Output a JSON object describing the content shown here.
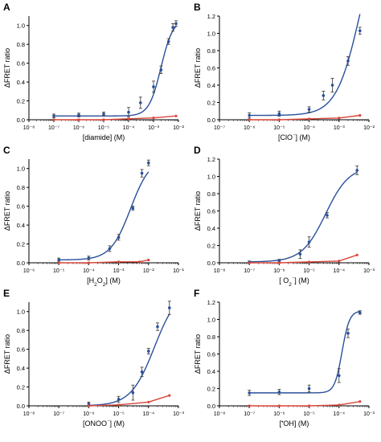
{
  "colors": {
    "blue": "#2a4f9a",
    "red": "#d9463b",
    "axis": "#000000",
    "errorbar": "#333333"
  },
  "panels": [
    {
      "letter": "A",
      "ylabel": "ΔFRET ratio",
      "xlabel": {
        "parts": [
          {
            "t": "[diamide] (M)"
          }
        ]
      },
      "x_ticks": [
        -8,
        -7,
        -6,
        -5,
        -4,
        -3,
        -2
      ],
      "x_tick_labels": [
        "10⁻⁸",
        "10⁻⁷",
        "10⁻⁶",
        "10⁻⁵",
        "10⁻⁴",
        "10⁻³",
        "10⁻²"
      ],
      "y_ticks": [
        0.0,
        0.2,
        0.4,
        0.6,
        0.8,
        1.0
      ],
      "y_tick_labels": [
        "0.0",
        "0.2",
        "0.4",
        "0.6",
        "0.8",
        "1.0"
      ],
      "ylim": [
        0,
        1.1
      ],
      "xlim": [
        -8,
        -2
      ],
      "blue_curve": {
        "bottom": 0.04,
        "top": 1.07,
        "log_ec50": -2.7,
        "hill": 1.8
      },
      "blue_points": [
        {
          "x": "1e-7",
          "y": 0.04,
          "err": 0.02
        },
        {
          "x": "1e-6",
          "y": 0.05,
          "err": 0.02
        },
        {
          "x": "1e-5",
          "y": 0.06,
          "err": 0.02
        },
        {
          "x": "1e-4",
          "y": 0.08,
          "err": 0.05
        },
        {
          "x": "3e-4",
          "y": 0.18,
          "err": 0.06
        },
        {
          "x": "1e-3",
          "y": 0.35,
          "err": 0.06
        },
        {
          "x": "2e-3",
          "y": 0.53,
          "err": 0.04
        },
        {
          "x": "4e-3",
          "y": 0.83,
          "err": 0.03
        },
        {
          "x": "6e-3",
          "y": 0.98,
          "err": 0.04
        },
        {
          "x": "8e-3",
          "y": 1.02,
          "err": 0.03
        }
      ],
      "red_points": [
        {
          "x": "1e-7",
          "y": 0.0
        },
        {
          "x": "1e-6",
          "y": 0.0
        },
        {
          "x": "1e-5",
          "y": 0.0
        },
        {
          "x": "1e-4",
          "y": 0.01
        },
        {
          "x": "1e-3",
          "y": 0.02
        },
        {
          "x": "8e-3",
          "y": 0.04
        }
      ]
    },
    {
      "letter": "B",
      "ylabel": "ΔFRET ratio",
      "xlabel": {
        "parts": [
          {
            "t": "[ClO"
          },
          {
            "t": "⁻",
            "sup": true
          },
          {
            "t": "] (M)"
          }
        ]
      },
      "x_ticks": [
        -7,
        -6,
        -5,
        -4,
        -3,
        -2
      ],
      "x_tick_labels": [
        "10⁻⁷",
        "10⁻⁶",
        "10⁻⁵",
        "10⁻⁴",
        "10⁻³",
        "10⁻²"
      ],
      "y_ticks": [
        0.0,
        0.2,
        0.4,
        0.6,
        0.8,
        1.0,
        1.2
      ],
      "y_tick_labels": [
        "0.0",
        "0.2",
        "0.4",
        "0.6",
        "0.8",
        "1.0",
        "1.2"
      ],
      "ylim": [
        0,
        1.2
      ],
      "xlim": [
        -7,
        -2
      ],
      "blue_curve": {
        "bottom": 0.05,
        "top": 2.4,
        "log_ec50": -2.3,
        "hill": 1.1
      },
      "blue_points": [
        {
          "x": "1e-6",
          "y": 0.05,
          "err": 0.03
        },
        {
          "x": "1e-5",
          "y": 0.07,
          "err": 0.03
        },
        {
          "x": "1e-4",
          "y": 0.12,
          "err": 0.03
        },
        {
          "x": "3e-4",
          "y": 0.28,
          "err": 0.05
        },
        {
          "x": "6e-4",
          "y": 0.4,
          "err": 0.08
        },
        {
          "x": "2e-3",
          "y": 0.68,
          "err": 0.05
        },
        {
          "x": "5e-3",
          "y": 1.03,
          "err": 0.04
        }
      ],
      "red_points": [
        {
          "x": "1e-6",
          "y": 0.0
        },
        {
          "x": "1e-5",
          "y": 0.0
        },
        {
          "x": "1e-4",
          "y": 0.01
        },
        {
          "x": "1e-3",
          "y": 0.02
        },
        {
          "x": "5e-3",
          "y": 0.05
        }
      ]
    },
    {
      "letter": "C",
      "ylabel": "ΔFRET ratio",
      "xlabel": {
        "parts": [
          {
            "t": "[H"
          },
          {
            "t": "2",
            "sub": true
          },
          {
            "t": "O"
          },
          {
            "t": "2",
            "sub": true
          },
          {
            "t": "] (M)"
          }
        ]
      },
      "x_ticks": [
        -6,
        -5,
        -4,
        -3,
        -2,
        -1
      ],
      "x_tick_labels": [
        "10⁻⁶",
        "10⁻⁵",
        "10⁻⁴",
        "10⁻³",
        "10⁻²",
        "10⁻¹"
      ],
      "y_ticks": [
        0.0,
        0.2,
        0.4,
        0.6,
        0.8,
        1.0
      ],
      "y_tick_labels": [
        "0.0",
        "0.2",
        "0.4",
        "0.6",
        "0.8",
        "1.0"
      ],
      "ylim": [
        0,
        1.1
      ],
      "xlim": [
        -6,
        -1
      ],
      "blue_curve": {
        "bottom": 0.03,
        "top": 1.12,
        "log_ec50": -2.6,
        "hill": 1.3
      },
      "blue_points": [
        {
          "x": "1e-5",
          "y": 0.03,
          "err": 0.02
        },
        {
          "x": "1e-4",
          "y": 0.05,
          "err": 0.02
        },
        {
          "x": "5e-4",
          "y": 0.15,
          "err": 0.03
        },
        {
          "x": "1e-3",
          "y": 0.27,
          "err": 0.03
        },
        {
          "x": "3e-3",
          "y": 0.58,
          "err": 0.02
        },
        {
          "x": "6e-3",
          "y": 0.95,
          "err": 0.04
        },
        {
          "x": "1e-2",
          "y": 1.06,
          "err": 0.03
        }
      ],
      "red_points": [
        {
          "x": "1e-5",
          "y": 0.0
        },
        {
          "x": "1e-4",
          "y": 0.0
        },
        {
          "x": "1e-3",
          "y": 0.01
        },
        {
          "x": "5e-3",
          "y": 0.01
        },
        {
          "x": "1e-2",
          "y": 0.03
        }
      ]
    },
    {
      "letter": "D",
      "ylabel": "ΔFRET ratio",
      "xlabel": {
        "parts": [
          {
            "t": "[ O"
          },
          {
            "t": "2",
            "sub": true
          },
          {
            "t": "⁻",
            "sup": true
          },
          {
            "t": "] (M)"
          }
        ]
      },
      "x_ticks": [
        -8,
        -7,
        -6,
        -5,
        -4,
        -3
      ],
      "x_tick_labels": [
        "10⁻⁸",
        "10⁻⁷",
        "10⁻⁶",
        "10⁻⁵",
        "10⁻⁴",
        "10⁻³"
      ],
      "y_ticks": [
        0.0,
        0.2,
        0.4,
        0.6,
        0.8,
        1.0,
        1.2
      ],
      "y_tick_labels": [
        "0.0",
        "0.2",
        "0.4",
        "0.6",
        "0.8",
        "1.0",
        "1.2"
      ],
      "ylim": [
        0,
        1.2
      ],
      "xlim": [
        -8,
        -3
      ],
      "blue_curve": {
        "bottom": 0.01,
        "top": 1.12,
        "log_ec50": -4.45,
        "hill": 1.1
      },
      "blue_points": [
        {
          "x": "1e-7",
          "y": 0.01,
          "err": 0.01
        },
        {
          "x": "1e-6",
          "y": 0.02,
          "err": 0.02
        },
        {
          "x": "5e-6",
          "y": 0.1,
          "err": 0.05
        },
        {
          "x": "1e-5",
          "y": 0.24,
          "err": 0.06
        },
        {
          "x": "4e-5",
          "y": 0.55,
          "err": 0.03
        },
        {
          "x": "4e-4",
          "y": 1.07,
          "err": 0.05
        }
      ],
      "red_points": [
        {
          "x": "1e-7",
          "y": 0.0
        },
        {
          "x": "1e-6",
          "y": 0.0
        },
        {
          "x": "1e-5",
          "y": 0.01
        },
        {
          "x": "1e-4",
          "y": 0.02
        },
        {
          "x": "4e-4",
          "y": 0.09
        }
      ]
    },
    {
      "letter": "E",
      "ylabel": "ΔFRET ratio",
      "xlabel": {
        "parts": [
          {
            "t": "[ONOO"
          },
          {
            "t": "⁻",
            "sup": true
          },
          {
            "t": "] (M)"
          }
        ]
      },
      "x_ticks": [
        -8,
        -7,
        -6,
        -5,
        -4,
        -3
      ],
      "x_tick_labels": [
        "10⁻⁸",
        "10⁻⁷",
        "10⁻⁶",
        "10⁻⁵",
        "10⁻⁴",
        "10⁻³"
      ],
      "y_ticks": [
        0.0,
        0.2,
        0.4,
        0.6,
        0.8,
        1.0
      ],
      "y_tick_labels": [
        "0.0",
        "0.2",
        "0.4",
        "0.6",
        "0.8",
        "1.0"
      ],
      "ylim": [
        0,
        1.1
      ],
      "xlim": [
        -8,
        -3
      ],
      "blue_curve": {
        "bottom": 0.0,
        "top": 1.25,
        "log_ec50": -3.8,
        "hill": 1.1
      },
      "blue_points": [
        {
          "x": "1e-6",
          "y": 0.02,
          "err": 0.02
        },
        {
          "x": "1e-5",
          "y": 0.07,
          "err": 0.03
        },
        {
          "x": "3e-5",
          "y": 0.14,
          "err": 0.08
        },
        {
          "x": "6e-5",
          "y": 0.36,
          "err": 0.05
        },
        {
          "x": "1e-4",
          "y": 0.58,
          "err": 0.03
        },
        {
          "x": "2e-4",
          "y": 0.84,
          "err": 0.04
        },
        {
          "x": "5e-4",
          "y": 1.04,
          "err": 0.07
        }
      ],
      "red_points": [
        {
          "x": "1e-6",
          "y": 0.0
        },
        {
          "x": "1e-5",
          "y": 0.01
        },
        {
          "x": "1e-4",
          "y": 0.04
        },
        {
          "x": "5e-4",
          "y": 0.11
        }
      ]
    },
    {
      "letter": "F",
      "ylabel": "ΔFRET ratio",
      "xlabel": {
        "parts": [
          {
            "t": "["
          },
          {
            "t": "•",
            "sup": true
          },
          {
            "t": "OH] (M)"
          }
        ]
      },
      "x_ticks": [
        -8,
        -7,
        -6,
        -5,
        -4,
        -3
      ],
      "x_tick_labels": [
        "10⁻⁸",
        "10⁻⁷",
        "10⁻⁶",
        "10⁻⁵",
        "10⁻⁴",
        "10⁻³"
      ],
      "y_ticks": [
        0.0,
        0.2,
        0.4,
        0.6,
        0.8,
        1.0,
        1.2
      ],
      "y_tick_labels": [
        "0.0",
        "0.2",
        "0.4",
        "0.6",
        "0.8",
        "1.0",
        "1.2"
      ],
      "ylim": [
        0,
        1.2
      ],
      "xlim": [
        -8,
        -3
      ],
      "blue_curve": {
        "bottom": 0.15,
        "top": 1.1,
        "log_ec50": -3.9,
        "hill": 3.5
      },
      "blue_points": [
        {
          "x": "1e-7",
          "y": 0.15,
          "err": 0.03
        },
        {
          "x": "1e-6",
          "y": 0.16,
          "err": 0.03
        },
        {
          "x": "1e-5",
          "y": 0.2,
          "err": 0.04
        },
        {
          "x": "1e-4",
          "y": 0.35,
          "err": 0.08
        },
        {
          "x": "2e-4",
          "y": 0.84,
          "err": 0.05
        },
        {
          "x": "5e-4",
          "y": 1.08,
          "err": 0.02
        }
      ],
      "red_points": [
        {
          "x": "1e-7",
          "y": 0.0
        },
        {
          "x": "1e-6",
          "y": 0.0
        },
        {
          "x": "1e-5",
          "y": 0.0
        },
        {
          "x": "1e-4",
          "y": 0.01
        },
        {
          "x": "5e-4",
          "y": 0.05
        }
      ]
    }
  ],
  "chart_data": [
    {
      "type": "scatter",
      "panel": "A",
      "xlabel": "[diamide] (M)",
      "ylabel": "ΔFRET ratio",
      "xscale": "log",
      "xlim": [
        "1e-8",
        "1e-2"
      ],
      "ylim": [
        0,
        1.1
      ],
      "series": [
        {
          "color": "#2a4f9a",
          "x": [
            "1e-7",
            "1e-6",
            "1e-5",
            "1e-4",
            "3e-4",
            "1e-3",
            "2e-3",
            "4e-3",
            "6e-3",
            "8e-3"
          ],
          "y": [
            0.04,
            0.05,
            0.06,
            0.08,
            0.18,
            0.35,
            0.53,
            0.83,
            0.98,
            1.02
          ]
        },
        {
          "color": "#d9463b",
          "x": [
            "1e-7",
            "1e-6",
            "1e-5",
            "1e-4",
            "1e-3",
            "8e-3"
          ],
          "y": [
            0.0,
            0.0,
            0.0,
            0.01,
            0.02,
            0.04
          ]
        }
      ]
    },
    {
      "type": "scatter",
      "panel": "B",
      "xlabel": "[ClO⁻] (M)",
      "ylabel": "ΔFRET ratio",
      "xscale": "log",
      "xlim": [
        "1e-7",
        "1e-2"
      ],
      "ylim": [
        0,
        1.2
      ],
      "series": [
        {
          "color": "#2a4f9a",
          "x": [
            "1e-6",
            "1e-5",
            "1e-4",
            "3e-4",
            "6e-4",
            "2e-3",
            "5e-3"
          ],
          "y": [
            0.05,
            0.07,
            0.12,
            0.28,
            0.4,
            0.68,
            1.03
          ]
        },
        {
          "color": "#d9463b",
          "x": [
            "1e-6",
            "1e-5",
            "1e-4",
            "1e-3",
            "5e-3"
          ],
          "y": [
            0.0,
            0.0,
            0.01,
            0.02,
            0.05
          ]
        }
      ]
    },
    {
      "type": "scatter",
      "panel": "C",
      "xlabel": "[H₂O₂] (M)",
      "ylabel": "ΔFRET ratio",
      "xscale": "log",
      "xlim": [
        "1e-6",
        "1e-1"
      ],
      "ylim": [
        0,
        1.1
      ],
      "series": [
        {
          "color": "#2a4f9a",
          "x": [
            "1e-5",
            "1e-4",
            "5e-4",
            "1e-3",
            "3e-3",
            "6e-3",
            "1e-2"
          ],
          "y": [
            0.03,
            0.05,
            0.15,
            0.27,
            0.58,
            0.95,
            1.06
          ]
        },
        {
          "color": "#d9463b",
          "x": [
            "1e-5",
            "1e-4",
            "1e-3",
            "5e-3",
            "1e-2"
          ],
          "y": [
            0.0,
            0.0,
            0.01,
            0.01,
            0.03
          ]
        }
      ]
    },
    {
      "type": "scatter",
      "panel": "D",
      "xlabel": "[ O₂⁻] (M)",
      "ylabel": "ΔFRET ratio",
      "xscale": "log",
      "xlim": [
        "1e-8",
        "1e-3"
      ],
      "ylim": [
        0,
        1.2
      ],
      "series": [
        {
          "color": "#2a4f9a",
          "x": [
            "1e-7",
            "1e-6",
            "5e-6",
            "1e-5",
            "4e-5",
            "4e-4"
          ],
          "y": [
            0.01,
            0.02,
            0.1,
            0.24,
            0.55,
            1.07
          ]
        },
        {
          "color": "#d9463b",
          "x": [
            "1e-7",
            "1e-6",
            "1e-5",
            "1e-4",
            "4e-4"
          ],
          "y": [
            0.0,
            0.0,
            0.01,
            0.02,
            0.09
          ]
        }
      ]
    },
    {
      "type": "scatter",
      "panel": "E",
      "xlabel": "[ONOO⁻] (M)",
      "ylabel": "ΔFRET ratio",
      "xscale": "log",
      "xlim": [
        "1e-8",
        "1e-3"
      ],
      "ylim": [
        0,
        1.1
      ],
      "series": [
        {
          "color": "#2a4f9a",
          "x": [
            "1e-6",
            "1e-5",
            "3e-5",
            "6e-5",
            "1e-4",
            "2e-4",
            "5e-4"
          ],
          "y": [
            0.02,
            0.07,
            0.14,
            0.36,
            0.58,
            0.84,
            1.04
          ]
        },
        {
          "color": "#d9463b",
          "x": [
            "1e-6",
            "1e-5",
            "1e-4",
            "5e-4"
          ],
          "y": [
            0.0,
            0.01,
            0.04,
            0.11
          ]
        }
      ]
    },
    {
      "type": "scatter",
      "panel": "F",
      "xlabel": "[•OH] (M)",
      "ylabel": "ΔFRET ratio",
      "xscale": "log",
      "xlim": [
        "1e-8",
        "1e-3"
      ],
      "ylim": [
        0,
        1.2
      ],
      "series": [
        {
          "color": "#2a4f9a",
          "x": [
            "1e-7",
            "1e-6",
            "1e-5",
            "1e-4",
            "2e-4",
            "5e-4"
          ],
          "y": [
            0.15,
            0.16,
            0.2,
            0.35,
            0.84,
            1.08
          ]
        },
        {
          "color": "#d9463b",
          "x": [
            "1e-7",
            "1e-6",
            "1e-5",
            "1e-4",
            "5e-4"
          ],
          "y": [
            0.0,
            0.0,
            0.0,
            0.01,
            0.05
          ]
        }
      ]
    }
  ]
}
